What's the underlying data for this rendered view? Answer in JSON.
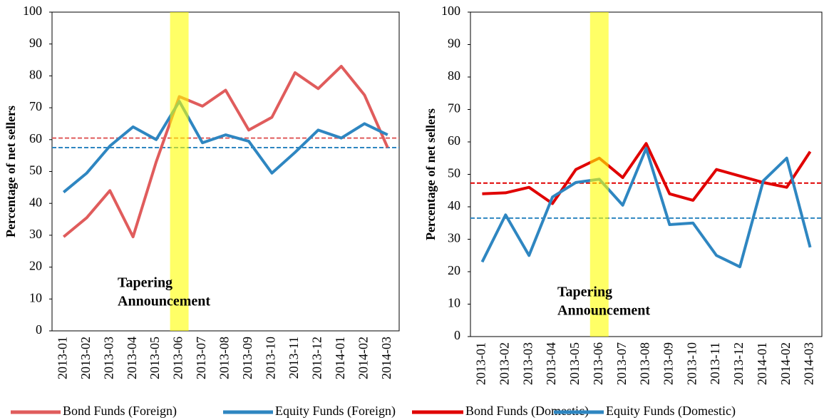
{
  "chart_data": [
    {
      "type": "line",
      "y_label": "Percentage of net sellers",
      "categories": [
        "2013-01",
        "2013-02",
        "2013-03",
        "2013-04",
        "2013-05",
        "2013-06",
        "2013-07",
        "2013-08",
        "2013-09",
        "2013-10",
        "2013-11",
        "2013-12",
        "2014-01",
        "2014-02",
        "2014-03"
      ],
      "series": [
        {
          "name": "Bond Funds (Foreign)",
          "color": "#e05c5c",
          "values": [
            29.5,
            35.5,
            44,
            29.5,
            53,
            73.5,
            70.5,
            75.5,
            63,
            67,
            81,
            76,
            83,
            74,
            57.5
          ]
        },
        {
          "name": "Equity Funds (Foreign)",
          "color": "#2e86c1",
          "values": [
            43.5,
            49.5,
            58,
            64,
            60,
            72,
            59,
            61.5,
            59.5,
            49.5,
            56,
            63,
            60.5,
            65,
            61.5
          ]
        }
      ],
      "hlines": [
        {
          "value": 60.5,
          "color": "#e05c5c"
        },
        {
          "value": 57.5,
          "color": "#2e86c1"
        }
      ],
      "highlight_index": 5,
      "annotation": [
        "Tapering",
        "Announcement"
      ],
      "ylim": [
        0,
        100
      ],
      "yticks": [
        0,
        10,
        20,
        30,
        40,
        50,
        60,
        70,
        80,
        90,
        100
      ]
    },
    {
      "type": "line",
      "y_label": "Percentage of net sellers",
      "categories": [
        "2013-01",
        "2013-02",
        "2013-03",
        "2013-04",
        "2013-05",
        "2013-06",
        "2013-07",
        "2013-08",
        "2013-09",
        "2013-10",
        "2013-11",
        "2013-12",
        "2014-01",
        "2014-02",
        "2014-03"
      ],
      "series": [
        {
          "name": "Bond Funds (Domestic)",
          "color": "#e00000",
          "values": [
            44,
            44.3,
            46,
            41,
            51.5,
            55,
            49,
            59.5,
            44,
            42,
            51.5,
            49.5,
            47.5,
            46,
            57
          ]
        },
        {
          "name": "Equity Funds (Domestic)",
          "color": "#2e86c1",
          "values": [
            23,
            37.5,
            25,
            43,
            47.5,
            48.5,
            40.5,
            58,
            34.5,
            35,
            25,
            21.5,
            48,
            55,
            27.5
          ]
        }
      ],
      "hlines": [
        {
          "value": 47.3,
          "color": "#e00000"
        },
        {
          "value": 36.5,
          "color": "#2e86c1"
        }
      ],
      "highlight_index": 5,
      "annotation": [
        "Tapering",
        "Announcement"
      ],
      "ylim": [
        0,
        100
      ],
      "yticks": [
        0,
        10,
        20,
        30,
        40,
        50,
        60,
        70,
        80,
        90,
        100
      ]
    }
  ]
}
